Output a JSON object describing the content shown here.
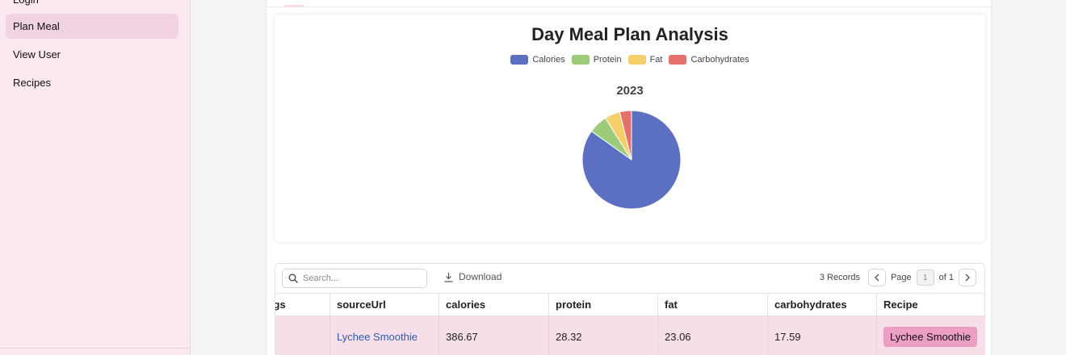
{
  "sidebar": {
    "items": [
      {
        "label": "Login"
      },
      {
        "label": "Plan Meal"
      },
      {
        "label": "View User"
      },
      {
        "label": "Recipes"
      }
    ]
  },
  "chart": {
    "title": "Day Meal Plan Analysis",
    "subtitle": "2023",
    "legend": [
      {
        "name": "Calories",
        "color": "#5b6fc3"
      },
      {
        "name": "Protein",
        "color": "#9ccb7a"
      },
      {
        "name": "Fat",
        "color": "#f6cf6a"
      },
      {
        "name": "Carbohydrates",
        "color": "#e6706a"
      }
    ]
  },
  "chart_data": {
    "type": "pie",
    "title": "Day Meal Plan Analysis",
    "subtitle": "2023",
    "categories": [
      "Calories",
      "Protein",
      "Fat",
      "Carbohydrates"
    ],
    "values": [
      386.67,
      28.32,
      23.06,
      17.59
    ],
    "colors": [
      "#5b6fc3",
      "#9ccb7a",
      "#f6cf6a",
      "#e6706a"
    ],
    "legend_position": "top"
  },
  "table": {
    "search_placeholder": "Search...",
    "download_label": "Download",
    "records_label": "3 Records",
    "page_label": "Page",
    "page_current": "1",
    "page_of": "of 1",
    "columns": [
      "ings",
      "sourceUrl",
      "calories",
      "protein",
      "fat",
      "carbohydrates",
      "Recipe"
    ],
    "rows": [
      {
        "servings": "",
        "sourceUrl": "Lychee Smoothie",
        "calories": "386.67",
        "protein": "28.32",
        "fat": "23.06",
        "carbohydrates": "17.59",
        "recipe": "Lychee Smoothie"
      }
    ]
  },
  "colors": {
    "sidebar_bg": "#f9e8f0",
    "active_item": "#f2d3e3",
    "row_highlight": "#f7dfea",
    "recipe_button": "#ec9ec3",
    "link": "#2c5db0"
  }
}
